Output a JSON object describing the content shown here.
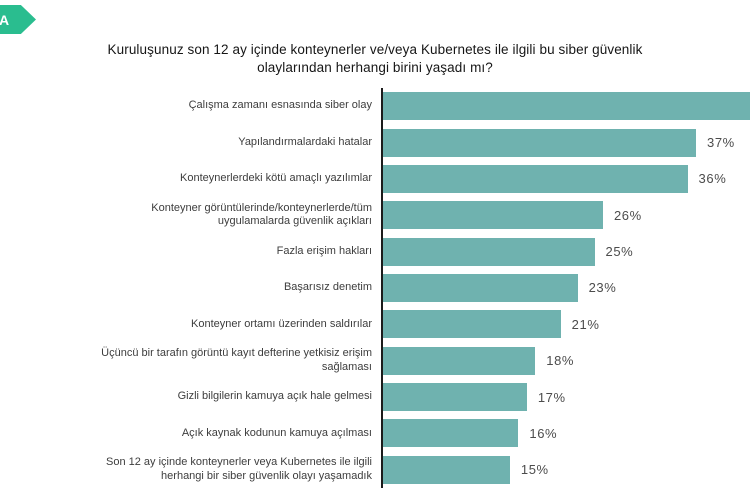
{
  "ribbon": {
    "letter": "A",
    "color": "#2abd8f"
  },
  "chart": {
    "title": "Kuruluşunuz son 12 ay içinde konteynerler ve/veya Kubernetes ile ilgili bu siber güvenlik olaylarından herhangi birini yaşadı mı?"
  },
  "chart_data": {
    "type": "bar",
    "orientation": "horizontal",
    "title": "Kuruluşunuz son 12 ay içinde konteynerler ve/veya Kubernetes ile ilgili bu siber güvenlik olaylarından herhangi birini yaşadı mı?",
    "categories": [
      "Çalışma zamanı esnasında siber olay",
      "Yapılandırmalardaki hatalar",
      "Konteynerlerdeki kötü amaçlı yazılımlar",
      "Konteyner görüntülerinde/konteynerlerde/tüm uygulamalarda güvenlik açıkları",
      "Fazla erişim hakları",
      "Başarısız denetim",
      "Konteyner ortamı üzerinden saldırılar",
      "Üçüncü bir tarafın görüntü kayıt defterine yetkisiz erişim sağlaması",
      "Gizli bilgilerin kamuya açık hale gelmesi",
      "Açık kaynak kodunun kamuya açılması",
      "Son 12 ay içinde konteynerler veya Kubernetes ile ilgili herhangi bir siber güvenlik olayı yaşamadık"
    ],
    "values": [
      44,
      37,
      36,
      26,
      25,
      23,
      21,
      18,
      17,
      16,
      15
    ],
    "data_labels": [
      "",
      "37%",
      "36%",
      "26%",
      "25%",
      "23%",
      "21%",
      "18%",
      "17%",
      "16%",
      "15%"
    ],
    "first_bar_clipped_at_right_edge": true,
    "bar_color": "#6fb2af",
    "axis_color": "#1b1b1b",
    "xlim": [
      0,
      44
    ],
    "grid": false,
    "legend": false,
    "value_label_position": "right-of-bar"
  }
}
